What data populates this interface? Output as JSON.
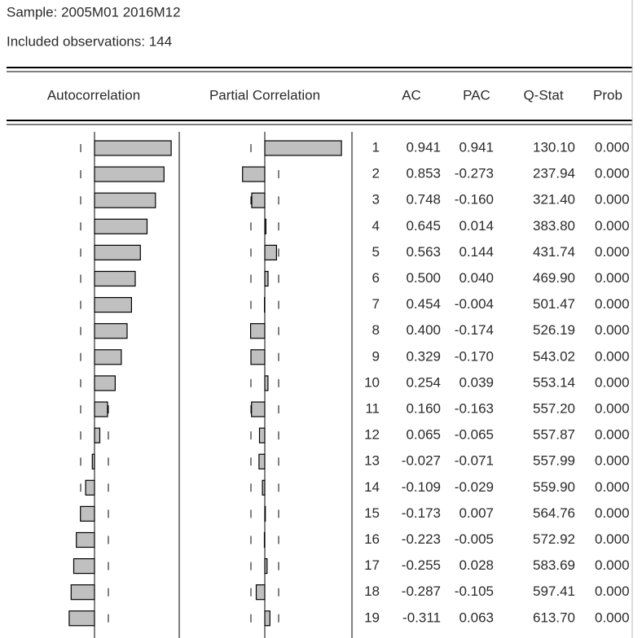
{
  "header": {
    "sample": "Sample: 2005M01 2016M12",
    "observations": "Included observations: 144"
  },
  "table": {
    "columns": [
      "Autocorrelation",
      "Partial Correlation",
      "AC",
      "PAC",
      "Q-Stat",
      "Prob"
    ],
    "rows": [
      [
        "1",
        "0.941",
        "0.941",
        "130.10",
        "0.000"
      ],
      [
        "2",
        "0.853",
        "-0.273",
        "237.94",
        "0.000"
      ],
      [
        "3",
        "0.748",
        "-0.160",
        "321.40",
        "0.000"
      ],
      [
        "4",
        "0.645",
        "0.014",
        "383.80",
        "0.000"
      ],
      [
        "5",
        "0.563",
        "0.144",
        "431.74",
        "0.000"
      ],
      [
        "6",
        "0.500",
        "0.040",
        "469.90",
        "0.000"
      ],
      [
        "7",
        "0.454",
        "-0.004",
        "501.47",
        "0.000"
      ],
      [
        "8",
        "0.400",
        "-0.174",
        "526.19",
        "0.000"
      ],
      [
        "9",
        "0.329",
        "-0.170",
        "543.02",
        "0.000"
      ],
      [
        "10",
        "0.254",
        "0.039",
        "553.14",
        "0.000"
      ],
      [
        "11",
        "0.160",
        "-0.163",
        "557.20",
        "0.000"
      ],
      [
        "12",
        "0.065",
        "-0.065",
        "557.87",
        "0.000"
      ],
      [
        "13",
        "-0.027",
        "-0.071",
        "557.99",
        "0.000"
      ],
      [
        "14",
        "-0.109",
        "-0.029",
        "559.90",
        "0.000"
      ],
      [
        "15",
        "-0.173",
        "0.007",
        "564.76",
        "0.000"
      ],
      [
        "16",
        "-0.223",
        "-0.005",
        "572.92",
        "0.000"
      ],
      [
        "17",
        "-0.255",
        "0.028",
        "583.69",
        "0.000"
      ],
      [
        "18",
        "-0.287",
        "-0.105",
        "597.41",
        "0.000"
      ],
      [
        "19",
        "-0.311",
        "0.063",
        "613.70",
        "0.000"
      ]
    ]
  }
}
